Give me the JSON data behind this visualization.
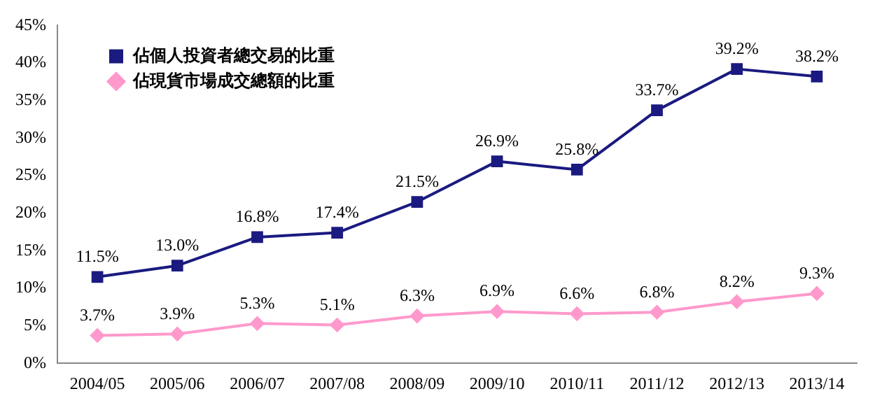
{
  "chart_data": {
    "type": "line",
    "categories": [
      "2004/05",
      "2005/06",
      "2006/07",
      "2007/08",
      "2008/09",
      "2009/10",
      "2010/11",
      "2011/12",
      "2012/13",
      "2013/14"
    ],
    "series": [
      {
        "name": "佔個人投資者總交易的比重",
        "color": "#1a1a80",
        "marker": "square",
        "values": [
          11.5,
          13.0,
          16.8,
          17.4,
          21.5,
          26.9,
          25.8,
          33.7,
          39.2,
          38.2
        ],
        "value_labels": [
          "11.5%",
          "13.0%",
          "16.8%",
          "17.4%",
          "21.5%",
          "26.9%",
          "25.8%",
          "33.7%",
          "39.2%",
          "38.2%"
        ]
      },
      {
        "name": "佔現貨市場成交總額的比重",
        "color": "#ff99cc",
        "marker": "diamond",
        "values": [
          3.7,
          3.9,
          5.3,
          5.1,
          6.3,
          6.9,
          6.6,
          6.8,
          8.2,
          9.3
        ],
        "value_labels": [
          "3.7%",
          "3.9%",
          "5.3%",
          "5.1%",
          "6.3%",
          "6.9%",
          "6.6%",
          "6.8%",
          "8.2%",
          "9.3%"
        ]
      }
    ],
    "ylim": [
      0,
      45
    ],
    "yticks": [
      {
        "value": 0,
        "label": "0%"
      },
      {
        "value": 5,
        "label": "5%"
      },
      {
        "value": 10,
        "label": "10%"
      },
      {
        "value": 15,
        "label": "15%"
      },
      {
        "value": 20,
        "label": "20%"
      },
      {
        "value": 25,
        "label": "25%"
      },
      {
        "value": 30,
        "label": "30%"
      },
      {
        "value": 35,
        "label": "35%"
      },
      {
        "value": 40,
        "label": "40%"
      },
      {
        "value": 45,
        "label": "45%"
      }
    ],
    "grid": false,
    "legend": "top left"
  }
}
